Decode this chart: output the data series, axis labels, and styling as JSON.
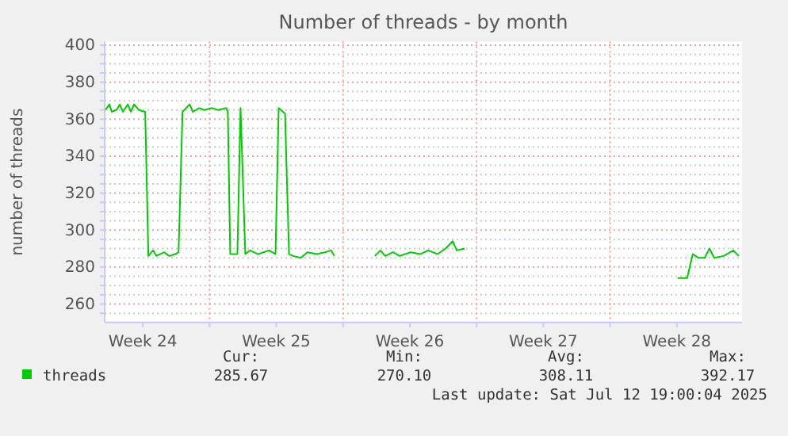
{
  "chart_data": {
    "type": "line",
    "title": "Number of threads - by month",
    "ylabel": "number of threads",
    "x": [
      "2025-06-10T13:00",
      "2025-06-10T18:00",
      "2025-06-10T21:00",
      "2025-06-11T03:00",
      "2025-06-11T07:00",
      "2025-06-11T11:00",
      "2025-06-11T17:00",
      "2025-06-11T21:00",
      "2025-06-12T01:00",
      "2025-06-12T07:00",
      "2025-06-12T15:00",
      "2025-06-12T19:00",
      "2025-06-13T01:00",
      "2025-06-13T05:00",
      "2025-06-13T15:00",
      "2025-06-13T21:00",
      "2025-06-14T05:00",
      "2025-06-14T09:00",
      "2025-06-14T14:00",
      "2025-06-14T23:00",
      "2025-06-15T03:00",
      "2025-06-15T11:00",
      "2025-06-15T17:00",
      "2025-06-16T03:00",
      "2025-06-16T11:00",
      "2025-06-16T21:00",
      "2025-06-16T23:00",
      "2025-06-17T02:00",
      "2025-06-17T11:00",
      "2025-06-17T15:00",
      "2025-06-17T21:00",
      "2025-06-18T03:00",
      "2025-06-18T13:00",
      "2025-06-19T03:00",
      "2025-06-19T11:00",
      "2025-06-19T15:00",
      "2025-06-19T23:00",
      "2025-06-20T04:00",
      "2025-06-20T09:00",
      "2025-06-20T19:00",
      "2025-06-21T03:00",
      "2025-06-21T15:00",
      "2025-06-22T01:00",
      "2025-06-22T09:00",
      "2025-06-22T13:00",
      "2025-06-23T12:00",
      "2025-06-24T16:00",
      "2025-06-24T23:00",
      "2025-06-25T05:00",
      "2025-06-25T15:00",
      "2025-06-25T23:00",
      "2025-06-26T13:00",
      "2025-06-27T01:00",
      "2025-06-27T11:00",
      "2025-06-27T23:00",
      "2025-06-28T09:00",
      "2025-06-28T18:00",
      "2025-06-28T23:00",
      "2025-06-29T09:00",
      "2025-07-05T00:00",
      "2025-07-10T13:00",
      "2025-07-11T01:00",
      "2025-07-11T08:00",
      "2025-07-11T15:00",
      "2025-07-11T23:00",
      "2025-07-12T05:00",
      "2025-07-12T11:00",
      "2025-07-12T23:00",
      "2025-07-13T11:00",
      "2025-07-13T18:00"
    ],
    "series": [
      {
        "name": "threads",
        "color": "#00cc00",
        "values": [
          365,
          368,
          364,
          365,
          368,
          364,
          368,
          364,
          368,
          365,
          364,
          286,
          289,
          286,
          288,
          286,
          287,
          288,
          364,
          368,
          364,
          366,
          365,
          366,
          365,
          366,
          364,
          287,
          287,
          366,
          287,
          289,
          287,
          289,
          287,
          366,
          363,
          287,
          286,
          285,
          288,
          287,
          288,
          289,
          286,
          null,
          286,
          289,
          286,
          288,
          286,
          288,
          287,
          289,
          287,
          290,
          294,
          289,
          290,
          null,
          274,
          274,
          287,
          285,
          285,
          290,
          285,
          286,
          289,
          286
        ]
      }
    ],
    "xlim": [
      "2025-06-10T12:00",
      "2025-07-13T22:00"
    ],
    "xticks": [
      {
        "value": "2025-06-12T12:00",
        "label": "Week 24"
      },
      {
        "value": "2025-06-16T00:00",
        "label": null
      },
      {
        "value": "2025-06-19T12:00",
        "label": "Week 25"
      },
      {
        "value": "2025-06-23T00:00",
        "label": null
      },
      {
        "value": "2025-06-26T12:00",
        "label": "Week 26"
      },
      {
        "value": "2025-06-30T00:00",
        "label": null
      },
      {
        "value": "2025-07-03T12:00",
        "label": "Week 27"
      },
      {
        "value": "2025-07-07T00:00",
        "label": null
      },
      {
        "value": "2025-07-10T12:00",
        "label": "Week 28"
      }
    ],
    "ylim": [
      250,
      402
    ],
    "yticks": [
      {
        "value": 255,
        "label": null
      },
      260,
      {
        "value": 265,
        "label": null
      },
      {
        "value": 270,
        "label": null
      },
      {
        "value": 275,
        "label": null
      },
      280,
      {
        "value": 285,
        "label": null
      },
      {
        "value": 290,
        "label": null
      },
      {
        "value": 295,
        "label": null
      },
      300,
      {
        "value": 305,
        "label": null
      },
      {
        "value": 310,
        "label": null
      },
      {
        "value": 315,
        "label": null
      },
      320,
      {
        "value": 325,
        "label": null
      },
      {
        "value": 330,
        "label": null
      },
      {
        "value": 335,
        "label": null
      },
      340,
      {
        "value": 345,
        "label": null
      },
      {
        "value": 350,
        "label": null
      },
      {
        "value": 355,
        "label": null
      },
      360,
      {
        "value": 365,
        "label": null
      },
      {
        "value": 370,
        "label": null
      },
      {
        "value": 375,
        "label": null
      },
      380,
      {
        "value": 385,
        "label": null
      },
      {
        "value": 390,
        "label": null
      },
      {
        "value": 395,
        "label": null
      },
      400
    ],
    "grid": true,
    "legend": "bottom",
    "marker": "none",
    "line_style": "solid",
    "annotations": [
      "Cur:\n285.67",
      "Min:\n270.10",
      "Avg:\n308.11",
      "Max:\n392.17",
      "Last update: Sat Jul 12 19:00:04 2025"
    ]
  }
}
